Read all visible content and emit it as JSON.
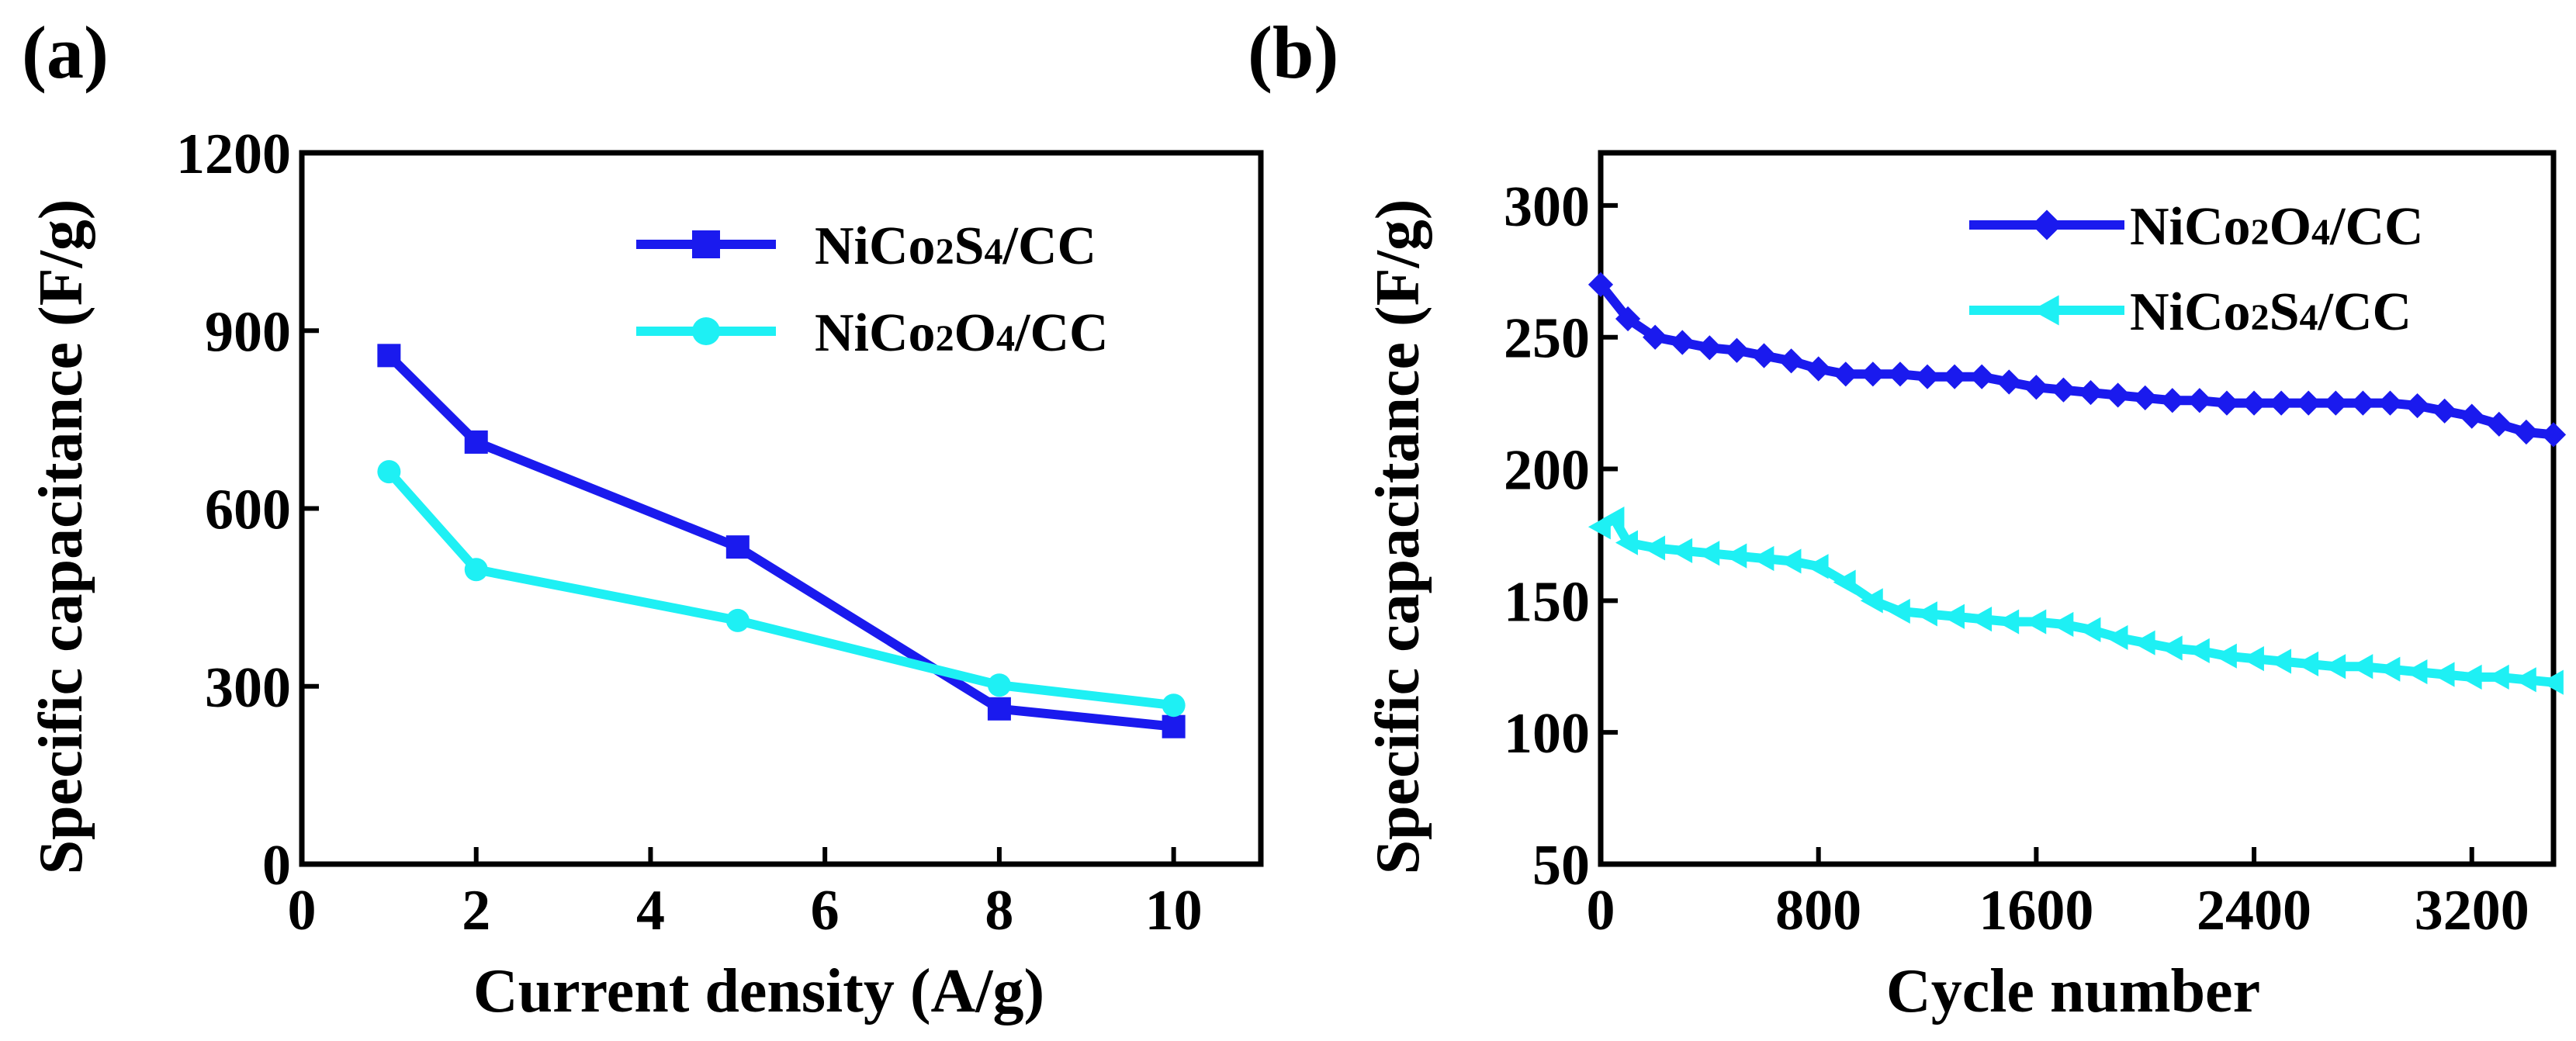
{
  "chart_data": [
    {
      "type": "line",
      "panel_label": "(a)",
      "xlabel": "Current density (A/g)",
      "ylabel": "Specific capacitance (F/g)",
      "xlim": [
        0,
        11
      ],
      "ylim": [
        0,
        1200
      ],
      "xticks": [
        0,
        2,
        4,
        6,
        8,
        10
      ],
      "yticks": [
        0,
        300,
        600,
        900,
        1200
      ],
      "grid": false,
      "legend_position": "top-right",
      "series": [
        {
          "name": "NiCo2S4/CC",
          "legend_parts": [
            "NiCo",
            "2",
            "S",
            "4",
            "/CC"
          ],
          "color": "#1a1aee",
          "marker": "square",
          "x": [
            1,
            2,
            5,
            8,
            10
          ],
          "y": [
            858,
            712,
            535,
            262,
            232
          ]
        },
        {
          "name": "NiCo2O4/CC",
          "legend_parts": [
            "NiCo",
            "2",
            "O",
            "4",
            "/CC"
          ],
          "color": "#1ef0f4",
          "marker": "circle",
          "x": [
            1,
            2,
            5,
            8,
            10
          ],
          "y": [
            662,
            497,
            411,
            302,
            268
          ]
        }
      ]
    },
    {
      "type": "line",
      "panel_label": "(b)",
      "xlabel": "Cycle number",
      "ylabel": "Specific capacitance (F/g)",
      "xlim": [
        0,
        3500
      ],
      "ylim": [
        50,
        320
      ],
      "xticks": [
        0,
        800,
        1600,
        2400,
        3200
      ],
      "yticks": [
        50,
        100,
        150,
        200,
        250,
        300
      ],
      "grid": false,
      "legend_position": "top-right",
      "series": [
        {
          "name": "NiCo2O4/CC",
          "legend_parts": [
            "NiCo",
            "2",
            "O",
            "4",
            "/CC"
          ],
          "color": "#1a1aee",
          "marker": "diamond",
          "x": [
            0,
            100,
            200,
            300,
            400,
            500,
            600,
            700,
            800,
            900,
            1000,
            1100,
            1200,
            1300,
            1400,
            1500,
            1600,
            1700,
            1800,
            1900,
            2000,
            2100,
            2200,
            2300,
            2400,
            2500,
            2600,
            2700,
            2800,
            2900,
            3000,
            3100,
            3200,
            3300,
            3400,
            3500
          ],
          "y": [
            270,
            257,
            250,
            248,
            246,
            245,
            243,
            241,
            238,
            236,
            236,
            236,
            235,
            235,
            235,
            233,
            231,
            230,
            229,
            228,
            227,
            226,
            226,
            225,
            225,
            225,
            225,
            225,
            225,
            225,
            224,
            222,
            220,
            217,
            214,
            213
          ]
        },
        {
          "name": "NiCo2S4/CC",
          "legend_parts": [
            "NiCo",
            "2",
            "S",
            "4",
            "/CC"
          ],
          "color": "#1ef0f4",
          "marker": "triangle-left",
          "x": [
            0,
            50,
            100,
            200,
            300,
            400,
            500,
            600,
            700,
            800,
            900,
            1000,
            1100,
            1200,
            1300,
            1400,
            1500,
            1600,
            1700,
            1800,
            1900,
            2000,
            2100,
            2200,
            2300,
            2400,
            2500,
            2600,
            2700,
            2800,
            2900,
            3000,
            3100,
            3200,
            3300,
            3400,
            3500
          ],
          "y": [
            178,
            181,
            172,
            170,
            169,
            168,
            167,
            166,
            165,
            163,
            157,
            150,
            146,
            145,
            144,
            143,
            142,
            142,
            141,
            139,
            136,
            134,
            132,
            131,
            129,
            128,
            127,
            126,
            125,
            125,
            124,
            123,
            122,
            121,
            121,
            120,
            119
          ]
        }
      ]
    }
  ]
}
